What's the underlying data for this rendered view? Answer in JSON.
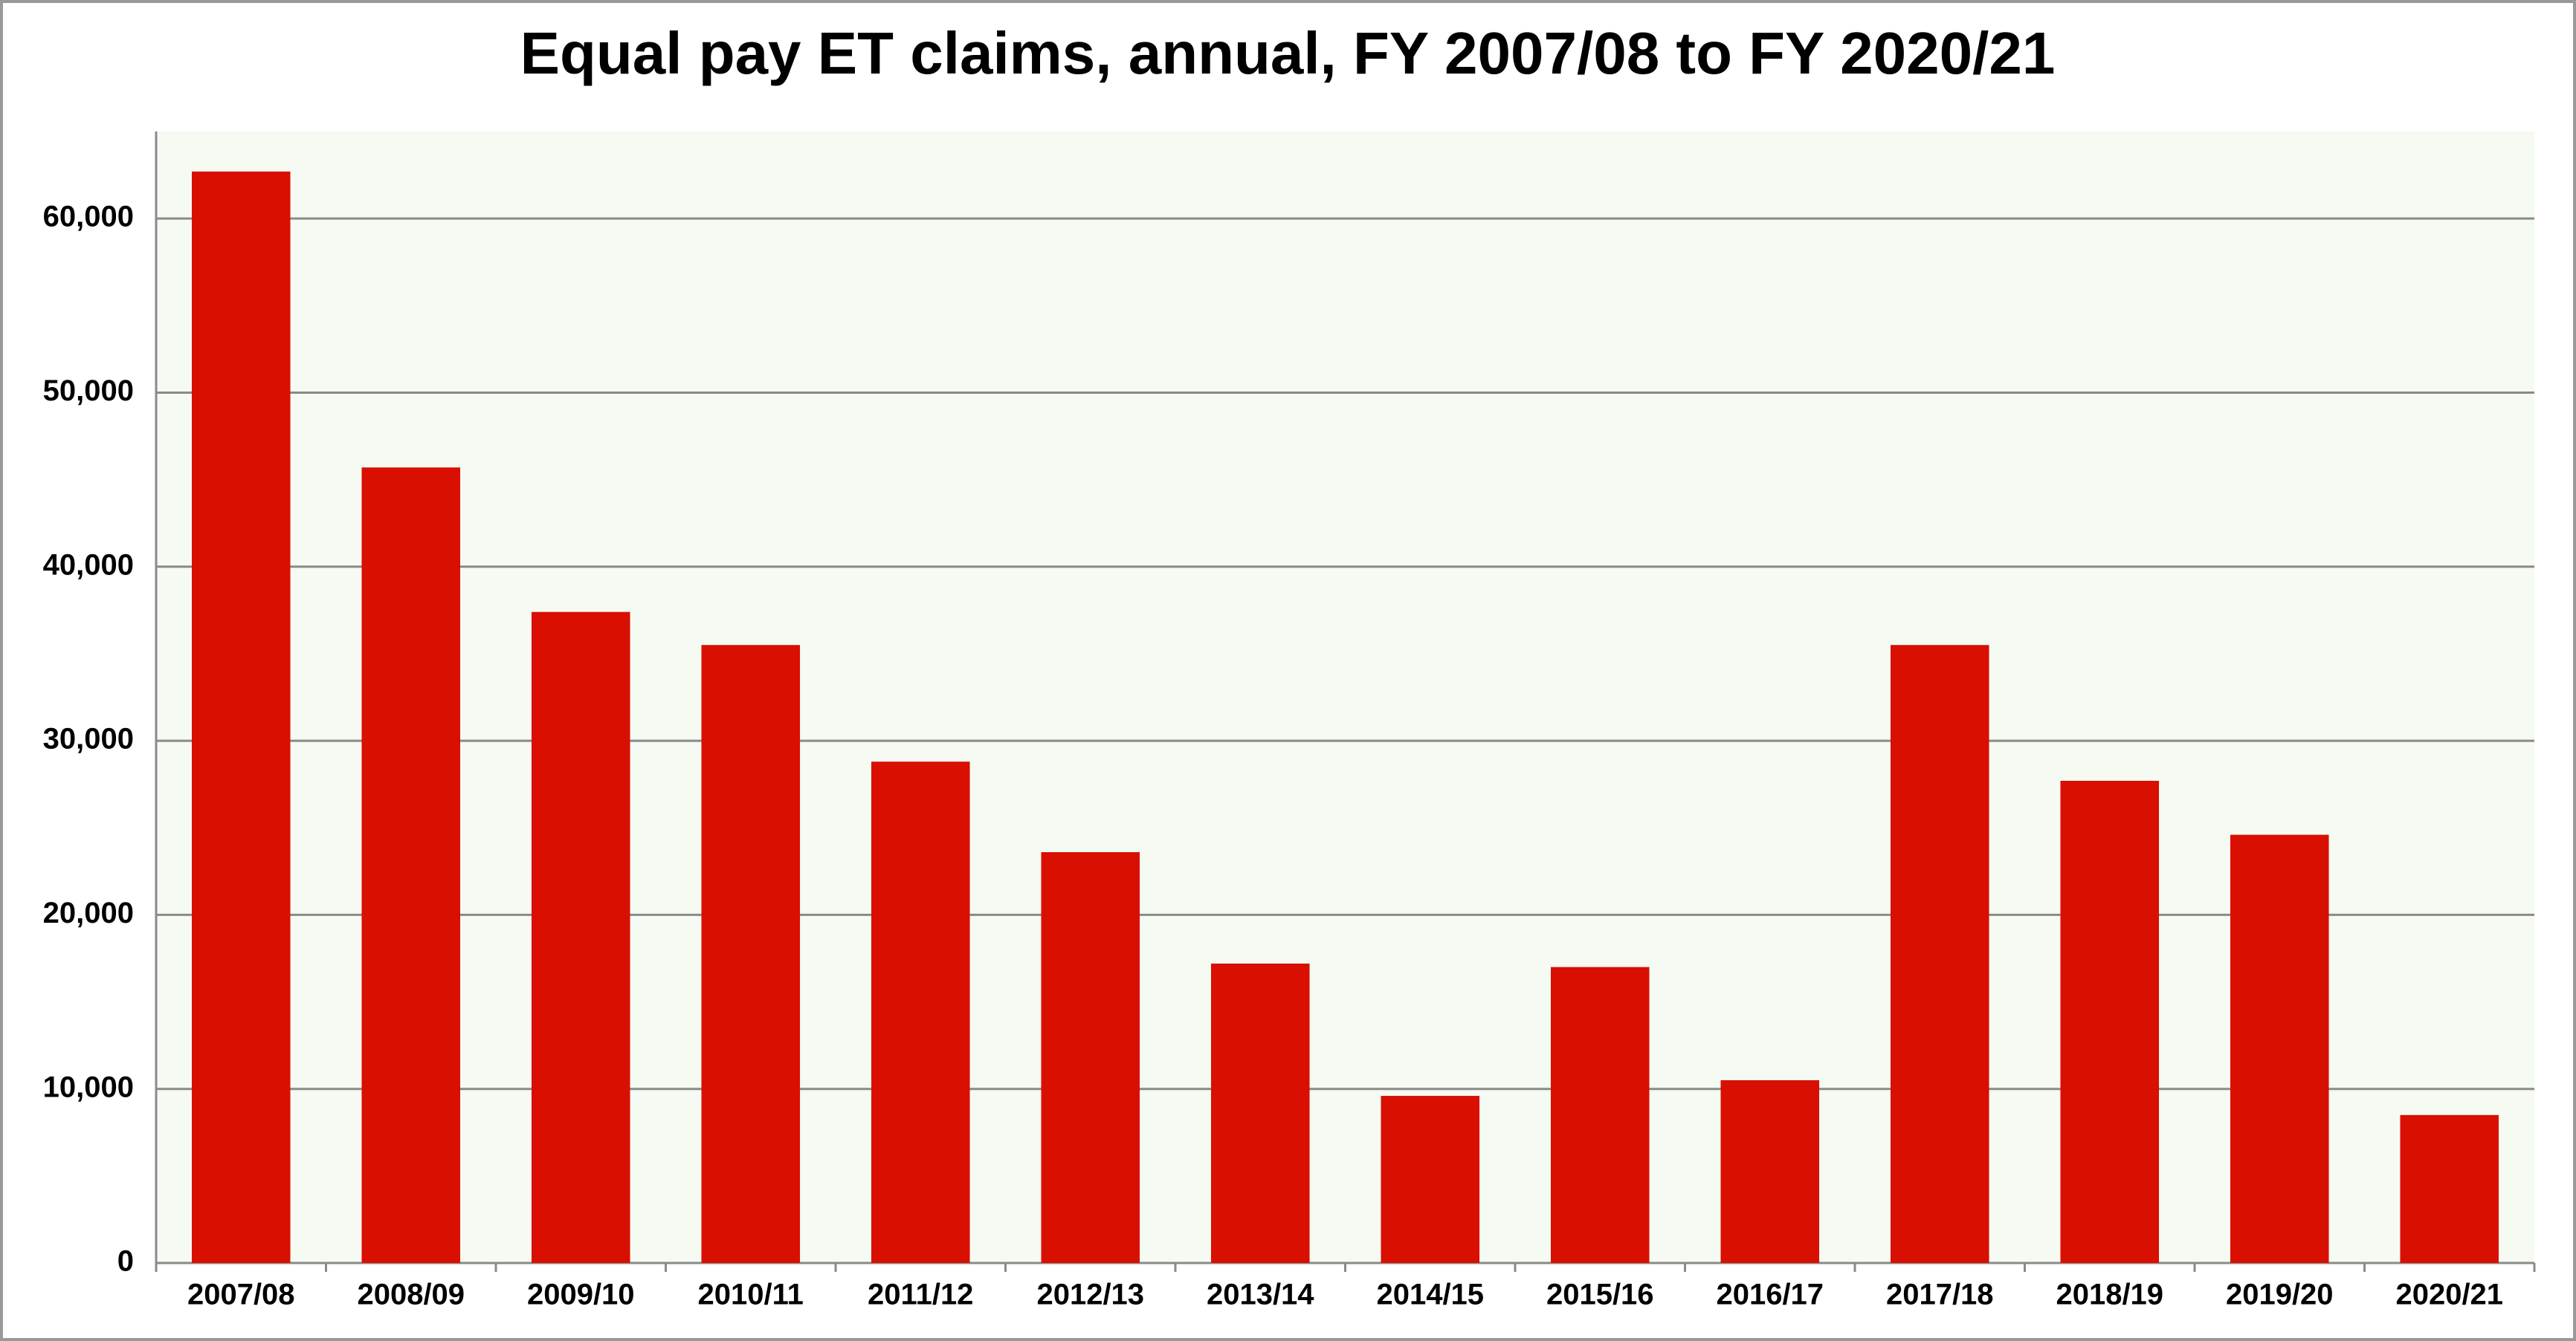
{
  "chart_data": {
    "type": "bar",
    "title": "Equal pay ET claims, annual, FY 2007/08 to FY 2020/21",
    "categories": [
      "2007/08",
      "2008/09",
      "2009/10",
      "2010/11",
      "2011/12",
      "2012/13",
      "2013/14",
      "2014/15",
      "2015/16",
      "2016/17",
      "2017/18",
      "2018/19",
      "2019/20",
      "2020/21"
    ],
    "values": [
      62700,
      45700,
      37400,
      35500,
      28800,
      23600,
      17200,
      9600,
      17000,
      10500,
      35500,
      27700,
      24600,
      8500
    ],
    "color": "#d90f02",
    "ylim": [
      0,
      65000
    ],
    "yticks": [
      0,
      {
        "value": 10000,
        "label": "10,000"
      },
      {
        "value": 20000,
        "label": "20,000"
      },
      {
        "value": 30000,
        "label": "30,000"
      },
      {
        "value": 40000,
        "label": "40,000"
      },
      {
        "value": 50000,
        "label": "50,000"
      },
      {
        "value": 60000,
        "label": "60,000"
      }
    ],
    "grid": true
  }
}
